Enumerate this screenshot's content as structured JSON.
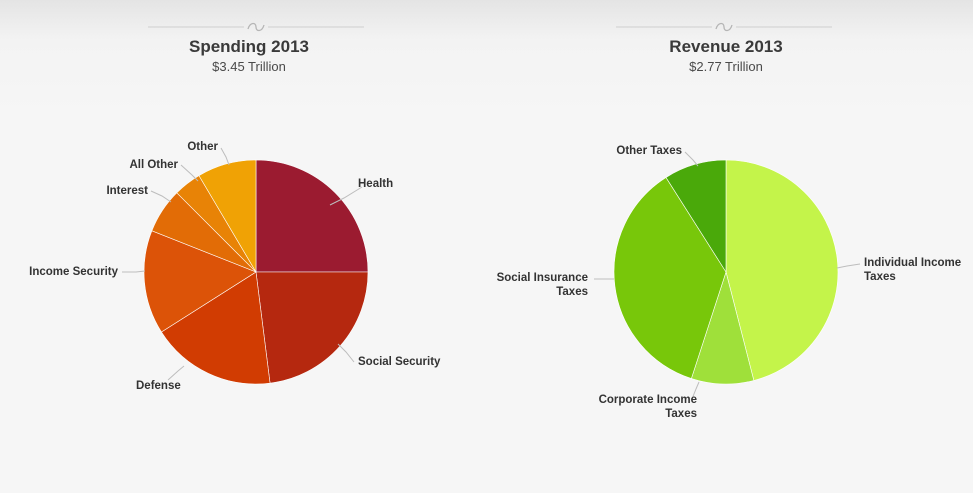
{
  "chart_data": [
    {
      "type": "pie",
      "title": "Spending 2013",
      "subtitle": "$3.45 Trillion",
      "slices": [
        {
          "label": "Health",
          "value": 25,
          "color": "#9b1b30"
        },
        {
          "label": "Social Security",
          "value": 23,
          "color": "#b5280f"
        },
        {
          "label": "Defense",
          "value": 18,
          "color": "#d13c02"
        },
        {
          "label": "Income Security",
          "value": 15,
          "color": "#dc5308"
        },
        {
          "label": "Interest",
          "value": 6.5,
          "color": "#e26c06"
        },
        {
          "label": "All Other",
          "value": 4,
          "color": "#e88306"
        },
        {
          "label": "Other",
          "value": 8.5,
          "color": "#f0a205"
        }
      ]
    },
    {
      "type": "pie",
      "title": "Revenue 2013",
      "subtitle": "$2.77 Trillion",
      "slices": [
        {
          "label": "Individual Income Taxes",
          "value": 46,
          "color": "#c4f44a"
        },
        {
          "label": "Corporate Income Taxes",
          "value": 9,
          "color": "#9fe03a"
        },
        {
          "label": "Social Insurance Taxes",
          "value": 36,
          "color": "#78c70a"
        },
        {
          "label": "Other Taxes",
          "value": 9,
          "color": "#4aa90a"
        }
      ]
    }
  ]
}
